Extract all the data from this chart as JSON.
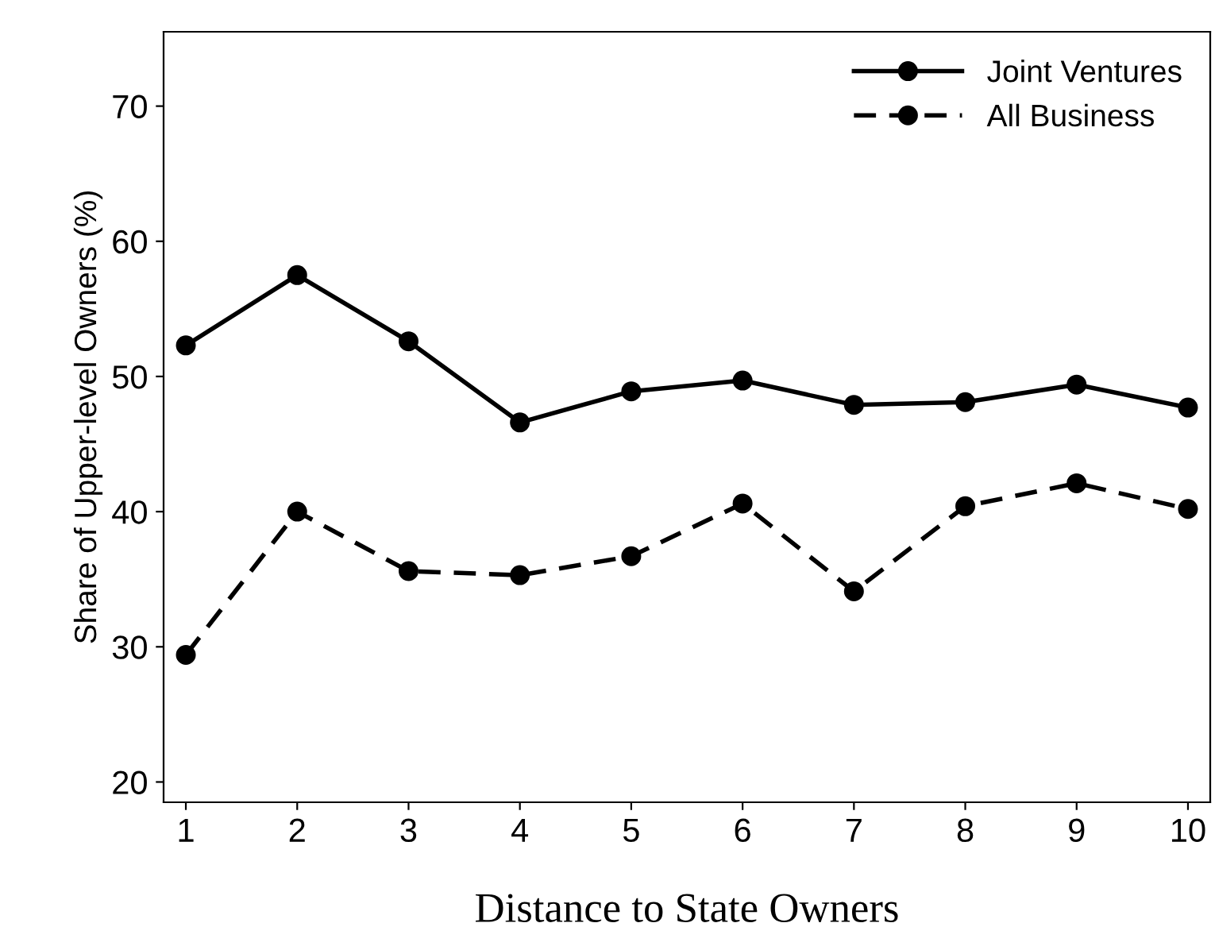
{
  "chart_data": {
    "type": "line",
    "xlabel": "Distance to State Owners",
    "ylabel": "Share of Upper-level Owners (%)",
    "x": [
      1,
      2,
      3,
      4,
      5,
      6,
      7,
      8,
      9,
      10
    ],
    "series": [
      {
        "name": "Joint Ventures",
        "color": "#000000",
        "line_style": "solid",
        "values": [
          52.3,
          57.5,
          52.6,
          46.6,
          48.9,
          49.7,
          47.9,
          48.1,
          49.4,
          47.7
        ]
      },
      {
        "name": "All Business",
        "color": "#000000",
        "line_style": "dashed",
        "values": [
          29.4,
          40.0,
          35.6,
          35.3,
          36.7,
          40.6,
          34.1,
          40.4,
          42.1,
          40.2
        ]
      }
    ],
    "xlim": [
      0.8,
      10.2
    ],
    "xticks": [
      1,
      2,
      3,
      4,
      5,
      6,
      7,
      8,
      9,
      10
    ],
    "ylim": [
      18.5,
      75.5
    ],
    "yticks": [
      20,
      30,
      40,
      50,
      60,
      70
    ],
    "marker": "circle",
    "grid": false,
    "legend": "top right"
  }
}
